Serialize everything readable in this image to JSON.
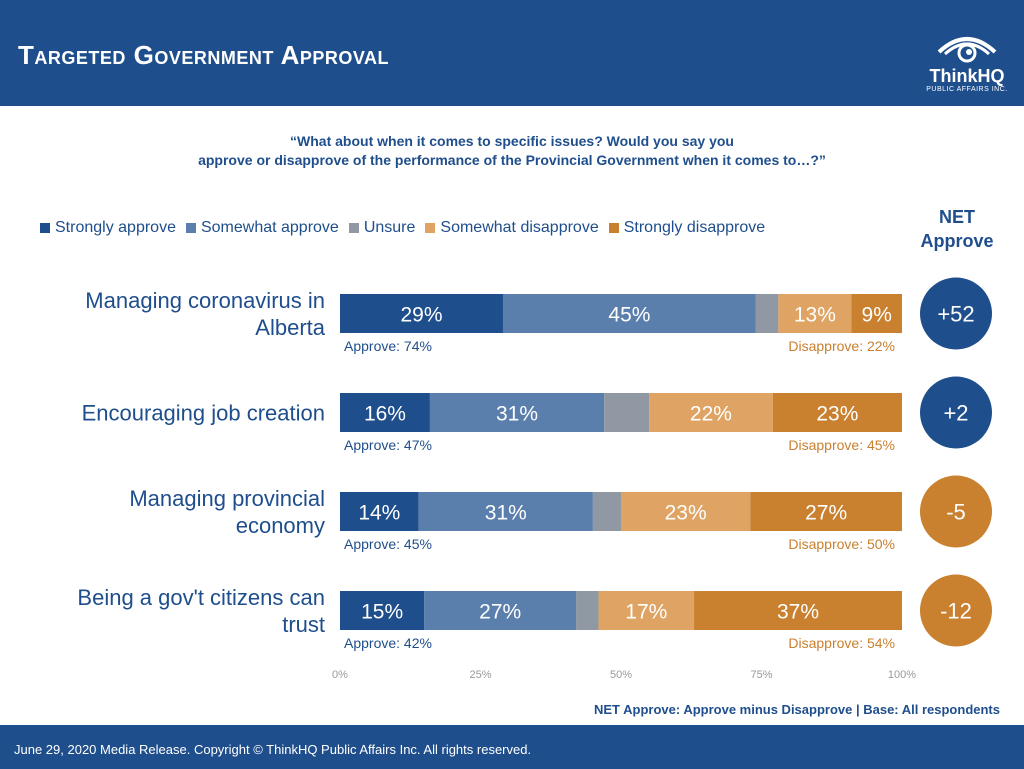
{
  "header": {
    "title": "Targeted Government Approval",
    "logo_text": "ThinkHQ",
    "logo_subtext": "PUBLIC AFFAIRS INC."
  },
  "question": "“What about when it comes to specific issues? Would you say you\napprove or disapprove of the performance of the Provincial Government when it comes to…?”",
  "net_title": "NET\nApprove",
  "footer_note": "NET Approve: Approve minus Disapprove | Base: All respondents",
  "footer_copyright": "June 29, 2020 Media Release. Copyright © ThinkHQ Public Affairs Inc. All rights reserved.",
  "colors": {
    "strongly_approve": "#1f4e8c",
    "somewhat_approve": "#5b7fad",
    "unsure": "#8f98a3",
    "somewhat_disapprove": "#dfa464",
    "strongly_disapprove": "#c9802f",
    "net_positive": "#1f4e8c",
    "net_negative": "#c9802f"
  },
  "chart_data": {
    "type": "bar",
    "orientation": "horizontal",
    "stacked": true,
    "xlim": [
      0,
      100
    ],
    "xticks": [
      "0%",
      "25%",
      "50%",
      "75%",
      "100%"
    ],
    "legend_position": "top",
    "categories": [
      "Managing coronavirus in Alberta",
      "Encouraging job creation",
      "Managing provincial economy",
      "Being a gov't citizens can trust"
    ],
    "series": [
      {
        "name": "Strongly approve",
        "values": [
          29,
          16,
          14,
          15
        ],
        "labels": [
          "29%",
          "16%",
          "14%",
          "15%"
        ]
      },
      {
        "name": "Somewhat approve",
        "values": [
          45,
          31,
          31,
          27
        ],
        "labels": [
          "45%",
          "31%",
          "31%",
          "27%"
        ]
      },
      {
        "name": "Unsure",
        "values": [
          4,
          8,
          5,
          4
        ],
        "labels": [
          "",
          "",
          "",
          ""
        ]
      },
      {
        "name": "Somewhat disapprove",
        "values": [
          13,
          22,
          23,
          17
        ],
        "labels": [
          "13%",
          "22%",
          "23%",
          "17%"
        ]
      },
      {
        "name": "Strongly disapprove",
        "values": [
          9,
          23,
          27,
          37
        ],
        "labels": [
          "9%",
          "23%",
          "27%",
          "37%"
        ]
      }
    ],
    "approve_labels": [
      "Approve: 74%",
      "Approve: 47%",
      "Approve: 45%",
      "Approve: 42%"
    ],
    "disapprove_labels": [
      "Disapprove: 22%",
      "Disapprove: 45%",
      "Disapprove: 50%",
      "Disapprove: 54%"
    ],
    "net": [
      "+52",
      "+2",
      "-5",
      "-12"
    ],
    "net_values": [
      52,
      2,
      -5,
      -12
    ]
  }
}
